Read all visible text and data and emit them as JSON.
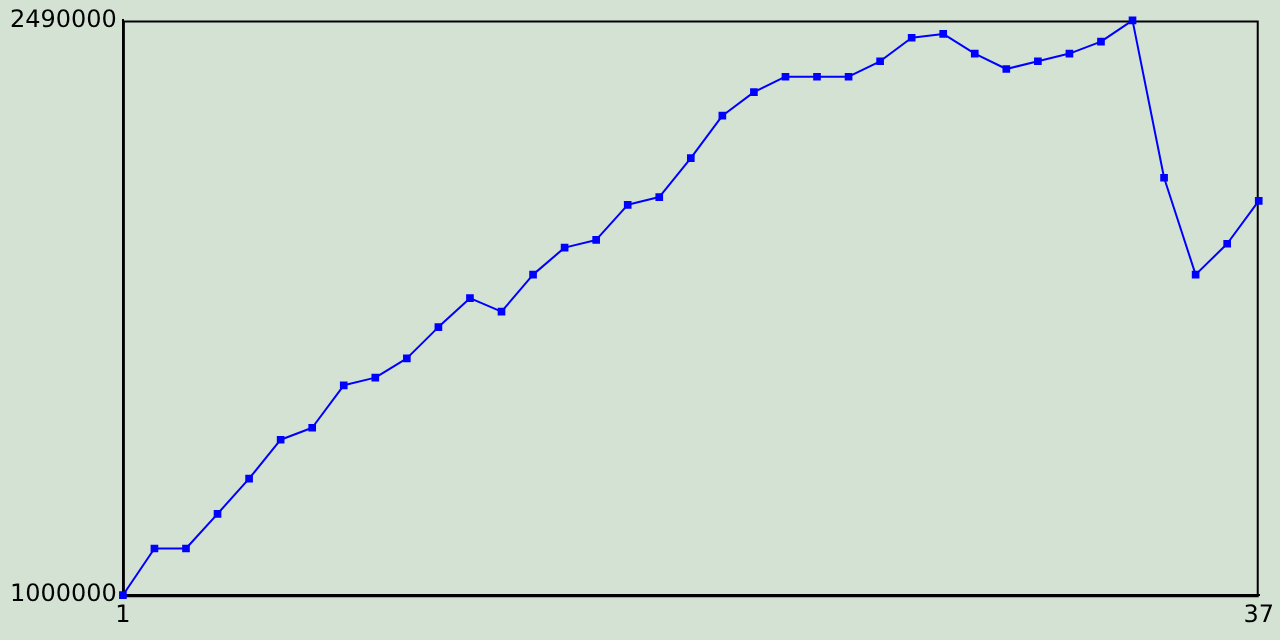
{
  "chart_data": {
    "type": "line",
    "x": [
      1,
      2,
      3,
      4,
      5,
      6,
      7,
      8,
      9,
      10,
      11,
      12,
      13,
      14,
      15,
      16,
      17,
      18,
      19,
      20,
      21,
      22,
      23,
      24,
      25,
      26,
      27,
      28,
      29,
      30,
      31,
      32,
      33,
      34,
      35,
      36,
      37
    ],
    "series": [
      {
        "color": "#0000ff",
        "values": [
          1000000,
          1121000,
          1121000,
          1211000,
          1302000,
          1403000,
          1434000,
          1544000,
          1564000,
          1614000,
          1695000,
          1770000,
          1735000,
          1831000,
          1901000,
          1921000,
          2012000,
          2032000,
          2133000,
          2243000,
          2304000,
          2344000,
          2344000,
          2344000,
          2384000,
          2445000,
          2455000,
          2404000,
          2364000,
          2384000,
          2404000,
          2435000,
          2490000,
          2082000,
          1831000,
          1911000,
          2022000
        ]
      }
    ],
    "xlim": [
      1,
      37
    ],
    "xticks": [
      1,
      37
    ],
    "ylim": [
      1000000,
      2490000
    ],
    "yticks": [
      1000000,
      2490000
    ],
    "grid": false,
    "legend": false,
    "marker": "square",
    "line_style": "solid"
  }
}
